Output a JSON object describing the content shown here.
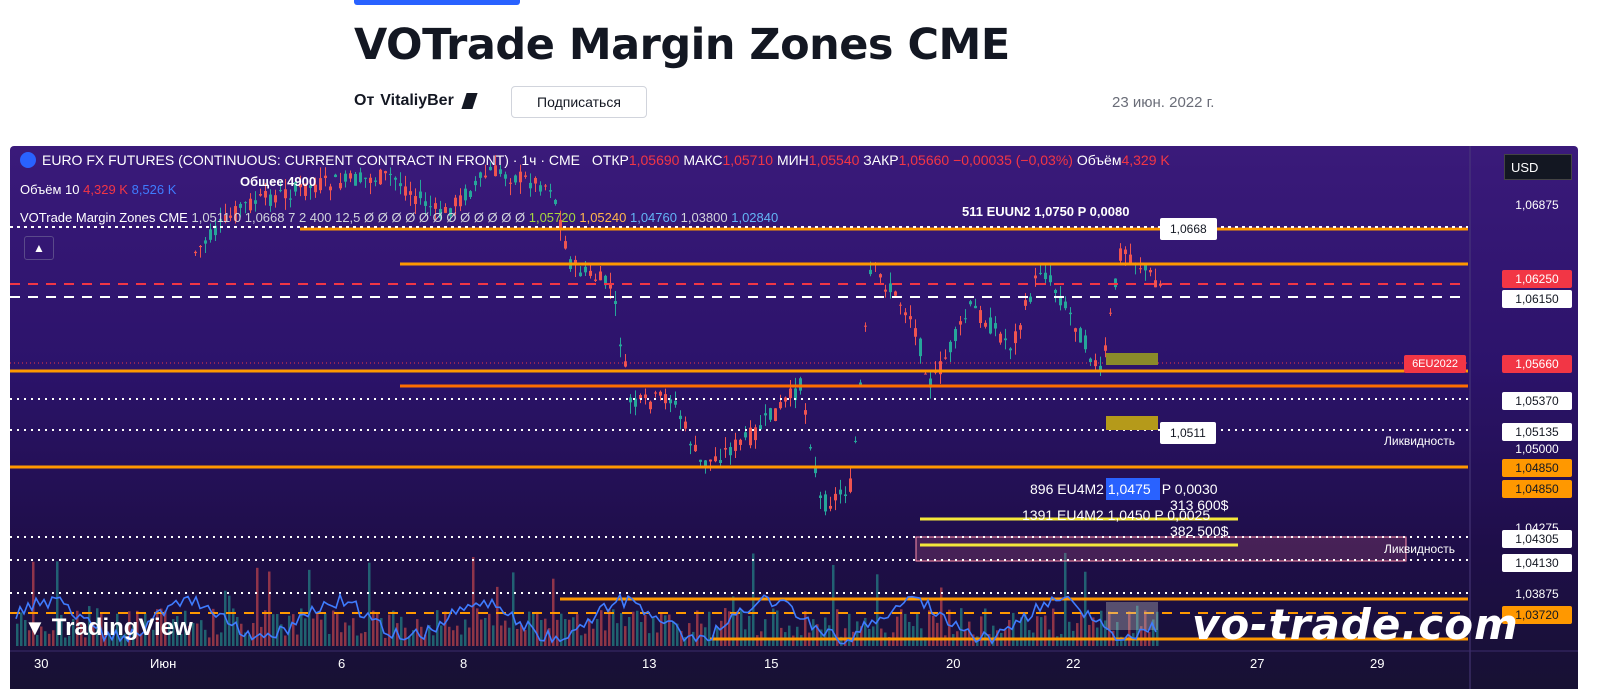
{
  "page": {
    "title": "VOTrade Margin Zones CME",
    "author_prefix": "От",
    "author": "VitaliyBer",
    "subscribe_label": "Подписаться",
    "date": "23 июн. 2022 г."
  },
  "chart": {
    "symbol_line": "EURO FX FUTURES (CONTINUOUS: CURRENT CONTRACT IN FRONT) · 1ч · CME",
    "ohlc": {
      "open_label": "ОТКР",
      "open": "1,05690",
      "high_label": "МАКС",
      "high": "1,05710",
      "low_label": "МИН",
      "low": "1,05540",
      "close_label": "ЗАКР",
      "close": "1,05660",
      "change": "−0,00035 (−0,03%)",
      "volume_label": "Объём",
      "volume": "4,329 K"
    },
    "volume_line": {
      "label": "Объём",
      "period": "10",
      "v1": "4,329 K",
      "v2": "8,526 K"
    },
    "total_label": "Общее 4900",
    "indicator_line": {
      "name": "VOTrade Margin Zones CME",
      "params": "1,0511 0 1,0668 7 2 400 12,5",
      "zeros": "Ø  Ø Ø Ø Ø Ø Ø Ø Ø Ø Ø Ø",
      "v1": "1,05720",
      "v2": "1,05240",
      "v3": "1,04760",
      "v4": "1,03800",
      "v5": "1,02840"
    },
    "currency": "USD",
    "annotations": {
      "top_contract": "511 EUUN2 1,0750 P 0,0080",
      "top_callout": "1,0668",
      "mid_callout": "1,0511",
      "liq_1": "Ликвидность",
      "liq_2": "Ликвидность",
      "opt1": "896 EU4M2",
      "opt1_price": "1,0475",
      "opt1_rest": "P 0,0030",
      "opt1_sum": "313 600$",
      "opt2": "1391 EU4M2 1,0450 P 0,0025",
      "opt2_sum": "382 500$"
    },
    "price_labels": [
      {
        "v": "1,06875",
        "style": "plain"
      },
      {
        "v": "1,06250",
        "style": "red"
      },
      {
        "v": "1,06150",
        "style": "white"
      },
      {
        "v": "1,05660",
        "style": "red"
      },
      {
        "v": "1,05370",
        "style": "white"
      },
      {
        "v": "1,05135",
        "style": "white"
      },
      {
        "v": "1,05000",
        "style": "plain"
      },
      {
        "v": "1,04850",
        "style": "orange"
      },
      {
        "v": "1,04850",
        "style": "orange"
      },
      {
        "v": "1,04275",
        "style": "plain"
      },
      {
        "v": "1,04305",
        "style": "white"
      },
      {
        "v": "1,04130",
        "style": "white"
      },
      {
        "v": "1,03875",
        "style": "plain"
      },
      {
        "v": "1,03720",
        "style": "orange"
      }
    ],
    "symbol_tag": "6EU2022",
    "x_labels": [
      "30",
      "Июн",
      "6",
      "8",
      "13",
      "15",
      "20",
      "22",
      "27",
      "29"
    ],
    "tv_brand": "TradingView",
    "watermark": "vo-trade.com",
    "colors": {
      "orange": "#ff9800",
      "red": "#f23645",
      "yellow": "#f5e83a",
      "white": "#ffffff"
    }
  }
}
